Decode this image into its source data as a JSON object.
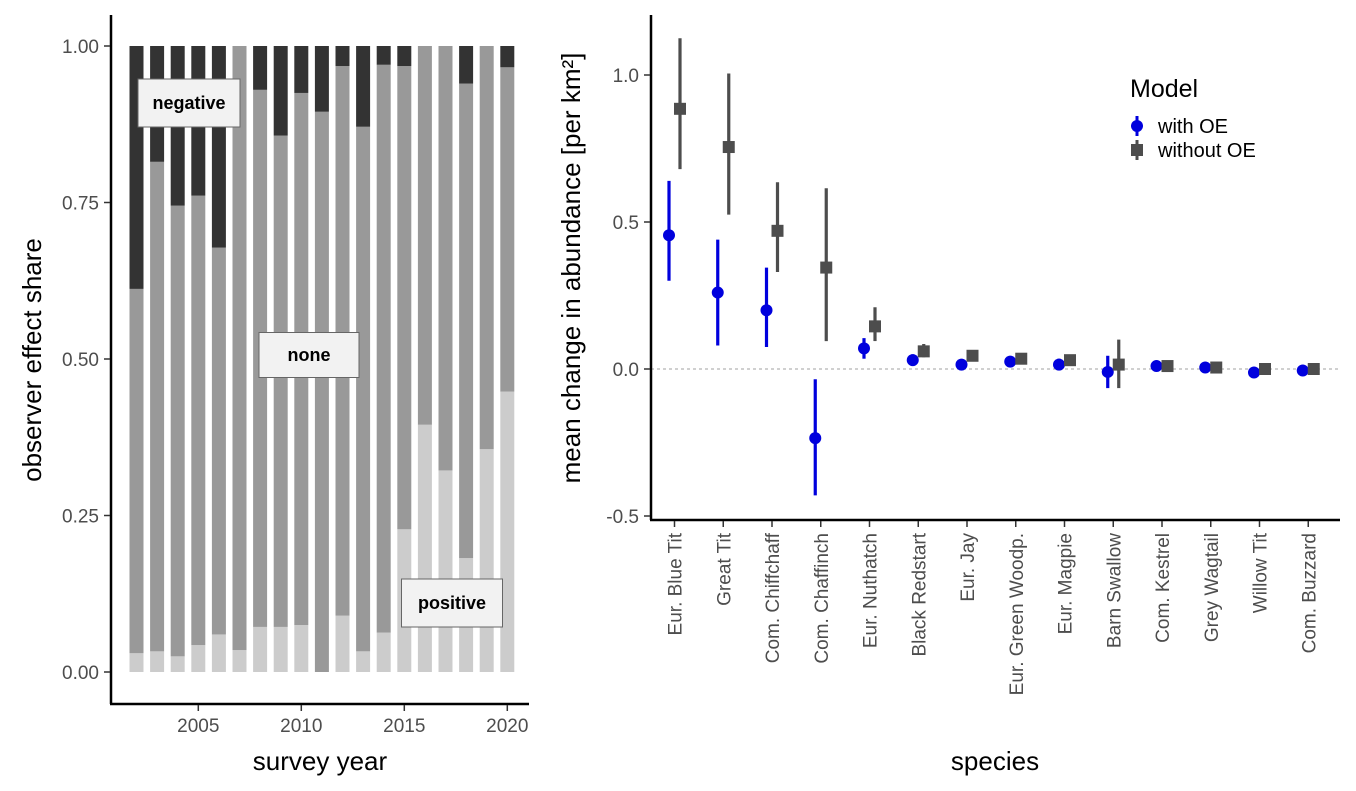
{
  "chart_data": [
    {
      "type": "bar",
      "stacked": true,
      "xlabel": "survey year",
      "ylabel": "observer effect share",
      "ylim": [
        0,
        1
      ],
      "yticks": [
        "0.00",
        "0.25",
        "0.50",
        "0.75",
        "1.00"
      ],
      "xticks": [
        "2005",
        "2010",
        "2015",
        "2020"
      ],
      "years": [
        2002,
        2003,
        2004,
        2005,
        2006,
        2007,
        2008,
        2009,
        2010,
        2011,
        2012,
        2013,
        2014,
        2015,
        2016,
        2017,
        2018,
        2019,
        2020
      ],
      "series": [
        {
          "name": "positive",
          "color": "#cccccc",
          "values": [
            0.03,
            0.033,
            0.025,
            0.043,
            0.06,
            0.035,
            0.072,
            0.072,
            0.075,
            0.0,
            0.09,
            0.033,
            0.063,
            0.228,
            0.395,
            0.322,
            0.182,
            0.356,
            0.448
          ]
        },
        {
          "name": "none",
          "color": "#999999",
          "values": [
            0.582,
            0.782,
            0.72,
            0.718,
            0.618,
            0.965,
            0.858,
            0.785,
            0.85,
            0.895,
            0.878,
            0.838,
            0.907,
            0.74,
            0.605,
            0.678,
            0.758,
            0.644,
            0.518
          ]
        },
        {
          "name": "negative",
          "color": "#333333",
          "values": [
            0.388,
            0.185,
            0.255,
            0.239,
            0.322,
            0.0,
            0.07,
            0.143,
            0.075,
            0.105,
            0.032,
            0.129,
            0.03,
            0.032,
            0.0,
            0.0,
            0.06,
            0.0,
            0.034
          ]
        }
      ],
      "annotations": [
        "negative",
        "none",
        "positive"
      ]
    },
    {
      "type": "scatter",
      "xlabel": "species",
      "ylabel": "mean change in abundance [per km²]",
      "ylim": [
        -0.5,
        1.2
      ],
      "yticks": [
        "-0.5",
        "0.0",
        "0.5",
        "1.0"
      ],
      "reference_line": 0,
      "legend_title": "Model",
      "legend_position": "top-right",
      "categories": [
        "Eur. Blue Tit",
        "Great Tit",
        "Com. Chiffchaff",
        "Com. Chaffinch",
        "Eur. Nuthatch",
        "Black Redstart",
        "Eur. Jay",
        "Eur. Green Woodp.",
        "Eur. Magpie",
        "Barn Swallow",
        "Com. Kestrel",
        "Grey Wagtail",
        "Willow Tit",
        "Com. Buzzard"
      ],
      "series": [
        {
          "name": "with OE",
          "color": "#0000dd",
          "marker": "circle",
          "values": [
            0.455,
            0.26,
            0.2,
            -0.235,
            0.07,
            0.03,
            0.015,
            0.025,
            0.015,
            -0.01,
            0.01,
            0.005,
            -0.012,
            -0.005
          ],
          "lower": [
            0.3,
            0.08,
            0.075,
            -0.43,
            0.035,
            0.01,
            0.005,
            0.015,
            -0.005,
            -0.065,
            0.005,
            0.0,
            -0.017,
            -0.01
          ],
          "upper": [
            0.64,
            0.44,
            0.345,
            -0.035,
            0.105,
            0.05,
            0.025,
            0.035,
            0.035,
            0.045,
            0.015,
            0.01,
            -0.007,
            0.0
          ]
        },
        {
          "name": "without OE",
          "color": "#4d4d4d",
          "marker": "square",
          "values": [
            0.885,
            0.755,
            0.47,
            0.345,
            0.145,
            0.06,
            0.045,
            0.035,
            0.03,
            0.015,
            0.01,
            0.005,
            0.0,
            0.0
          ],
          "lower": [
            0.68,
            0.525,
            0.33,
            0.095,
            0.095,
            0.04,
            0.035,
            0.025,
            0.02,
            -0.065,
            0.005,
            0.0,
            -0.003,
            -0.003
          ],
          "upper": [
            1.125,
            1.005,
            0.635,
            0.615,
            0.21,
            0.085,
            0.055,
            0.045,
            0.04,
            0.1,
            0.015,
            0.01,
            0.003,
            0.003
          ]
        }
      ]
    }
  ]
}
